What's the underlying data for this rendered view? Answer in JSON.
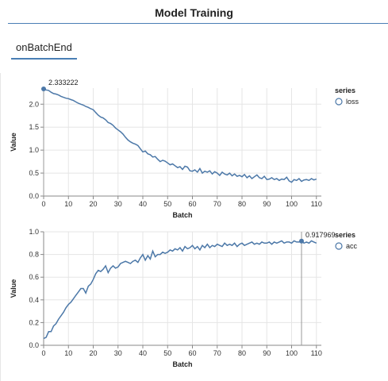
{
  "header": {
    "title": "Model Training"
  },
  "tabs": [
    {
      "label": "onBatchEnd"
    }
  ],
  "colors": {
    "accent": "#4a7fb5",
    "line": "#4c78a8",
    "grid": "#e5e5e5"
  },
  "chart_data": [
    {
      "type": "line",
      "xlabel": "Batch",
      "ylabel": "Value",
      "xlim": [
        0,
        112
      ],
      "ylim": [
        0,
        2.35
      ],
      "xticks": [
        0,
        10,
        20,
        30,
        40,
        50,
        60,
        70,
        80,
        90,
        100,
        110
      ],
      "yticks": [
        0,
        0.5,
        1.0,
        1.5,
        2.0
      ],
      "ytick_labels": [
        "0.0",
        "0.5",
        "1.0",
        "1.5",
        "2.0"
      ],
      "grid": true,
      "legend": {
        "title": "series",
        "position": "right"
      },
      "annotation": {
        "x": 0,
        "y": 2.333222,
        "label": "2.333222"
      },
      "series": [
        {
          "name": "loss",
          "x": [
            0,
            1,
            2,
            3,
            4,
            5,
            6,
            7,
            8,
            9,
            10,
            11,
            12,
            13,
            14,
            15,
            16,
            17,
            18,
            19,
            20,
            21,
            22,
            23,
            24,
            25,
            26,
            27,
            28,
            29,
            30,
            31,
            32,
            33,
            34,
            35,
            36,
            37,
            38,
            39,
            40,
            41,
            42,
            43,
            44,
            45,
            46,
            47,
            48,
            49,
            50,
            51,
            52,
            53,
            54,
            55,
            56,
            57,
            58,
            59,
            60,
            61,
            62,
            63,
            64,
            65,
            66,
            67,
            68,
            69,
            70,
            71,
            72,
            73,
            74,
            75,
            76,
            77,
            78,
            79,
            80,
            81,
            82,
            83,
            84,
            85,
            86,
            87,
            88,
            89,
            90,
            91,
            92,
            93,
            94,
            95,
            96,
            97,
            98,
            99,
            100,
            101,
            102,
            103,
            104,
            105,
            106,
            107,
            108,
            109,
            110
          ],
          "values": [
            2.33,
            2.31,
            2.3,
            2.26,
            2.23,
            2.22,
            2.2,
            2.17,
            2.15,
            2.13,
            2.12,
            2.1,
            2.08,
            2.05,
            2.02,
            2.0,
            1.98,
            1.95,
            1.93,
            1.9,
            1.88,
            1.82,
            1.76,
            1.72,
            1.7,
            1.66,
            1.6,
            1.58,
            1.54,
            1.48,
            1.44,
            1.4,
            1.35,
            1.28,
            1.22,
            1.18,
            1.15,
            1.13,
            1.1,
            1.03,
            0.96,
            0.98,
            0.92,
            0.9,
            0.85,
            0.86,
            0.8,
            0.75,
            0.78,
            0.76,
            0.72,
            0.68,
            0.7,
            0.66,
            0.62,
            0.64,
            0.58,
            0.65,
            0.63,
            0.55,
            0.54,
            0.57,
            0.52,
            0.6,
            0.5,
            0.54,
            0.52,
            0.55,
            0.48,
            0.53,
            0.5,
            0.45,
            0.52,
            0.48,
            0.46,
            0.5,
            0.44,
            0.48,
            0.43,
            0.45,
            0.42,
            0.47,
            0.4,
            0.44,
            0.38,
            0.42,
            0.46,
            0.4,
            0.38,
            0.43,
            0.36,
            0.37,
            0.4,
            0.36,
            0.38,
            0.34,
            0.37,
            0.36,
            0.41,
            0.33,
            0.3,
            0.36,
            0.34,
            0.38,
            0.32,
            0.35,
            0.36,
            0.34,
            0.38,
            0.35,
            0.37
          ]
        }
      ]
    },
    {
      "type": "line",
      "xlabel": "Batch",
      "ylabel": "Value",
      "xlim": [
        0,
        112
      ],
      "ylim": [
        0,
        1.0
      ],
      "xticks": [
        0,
        10,
        20,
        30,
        40,
        50,
        60,
        70,
        80,
        90,
        100,
        110
      ],
      "yticks": [
        0,
        0.2,
        0.4,
        0.6,
        0.8,
        1.0
      ],
      "ytick_labels": [
        "0.0",
        "0.2",
        "0.4",
        "0.6",
        "0.8",
        "1.0"
      ],
      "grid": true,
      "legend": {
        "title": "series",
        "position": "right"
      },
      "annotation": {
        "x": 104,
        "y": 0.917969,
        "label": "0.917969"
      },
      "series": [
        {
          "name": "acc",
          "x": [
            0,
            1,
            2,
            3,
            4,
            5,
            6,
            7,
            8,
            9,
            10,
            11,
            12,
            13,
            14,
            15,
            16,
            17,
            18,
            19,
            20,
            21,
            22,
            23,
            24,
            25,
            26,
            27,
            28,
            29,
            30,
            31,
            32,
            33,
            34,
            35,
            36,
            37,
            38,
            39,
            40,
            41,
            42,
            43,
            44,
            45,
            46,
            47,
            48,
            49,
            50,
            51,
            52,
            53,
            54,
            55,
            56,
            57,
            58,
            59,
            60,
            61,
            62,
            63,
            64,
            65,
            66,
            67,
            68,
            69,
            70,
            71,
            72,
            73,
            74,
            75,
            76,
            77,
            78,
            79,
            80,
            81,
            82,
            83,
            84,
            85,
            86,
            87,
            88,
            89,
            90,
            91,
            92,
            93,
            94,
            95,
            96,
            97,
            98,
            99,
            100,
            101,
            102,
            103,
            104,
            105,
            106,
            107,
            108,
            109,
            110
          ],
          "values": [
            0.06,
            0.07,
            0.12,
            0.12,
            0.17,
            0.19,
            0.23,
            0.26,
            0.29,
            0.33,
            0.36,
            0.38,
            0.41,
            0.44,
            0.47,
            0.5,
            0.5,
            0.46,
            0.52,
            0.54,
            0.58,
            0.63,
            0.66,
            0.65,
            0.67,
            0.7,
            0.64,
            0.68,
            0.7,
            0.68,
            0.69,
            0.72,
            0.73,
            0.74,
            0.73,
            0.72,
            0.74,
            0.75,
            0.73,
            0.77,
            0.8,
            0.75,
            0.79,
            0.76,
            0.83,
            0.78,
            0.8,
            0.8,
            0.82,
            0.81,
            0.82,
            0.84,
            0.83,
            0.85,
            0.84,
            0.86,
            0.83,
            0.87,
            0.85,
            0.86,
            0.88,
            0.85,
            0.87,
            0.84,
            0.88,
            0.86,
            0.89,
            0.86,
            0.88,
            0.87,
            0.89,
            0.88,
            0.87,
            0.9,
            0.88,
            0.89,
            0.88,
            0.9,
            0.87,
            0.89,
            0.9,
            0.88,
            0.89,
            0.9,
            0.91,
            0.89,
            0.9,
            0.89,
            0.91,
            0.9,
            0.9,
            0.91,
            0.89,
            0.91,
            0.9,
            0.91,
            0.92,
            0.9,
            0.91,
            0.91,
            0.9,
            0.92,
            0.91,
            0.91,
            0.918,
            0.9,
            0.91,
            0.9,
            0.92,
            0.91,
            0.9
          ]
        }
      ]
    }
  ]
}
